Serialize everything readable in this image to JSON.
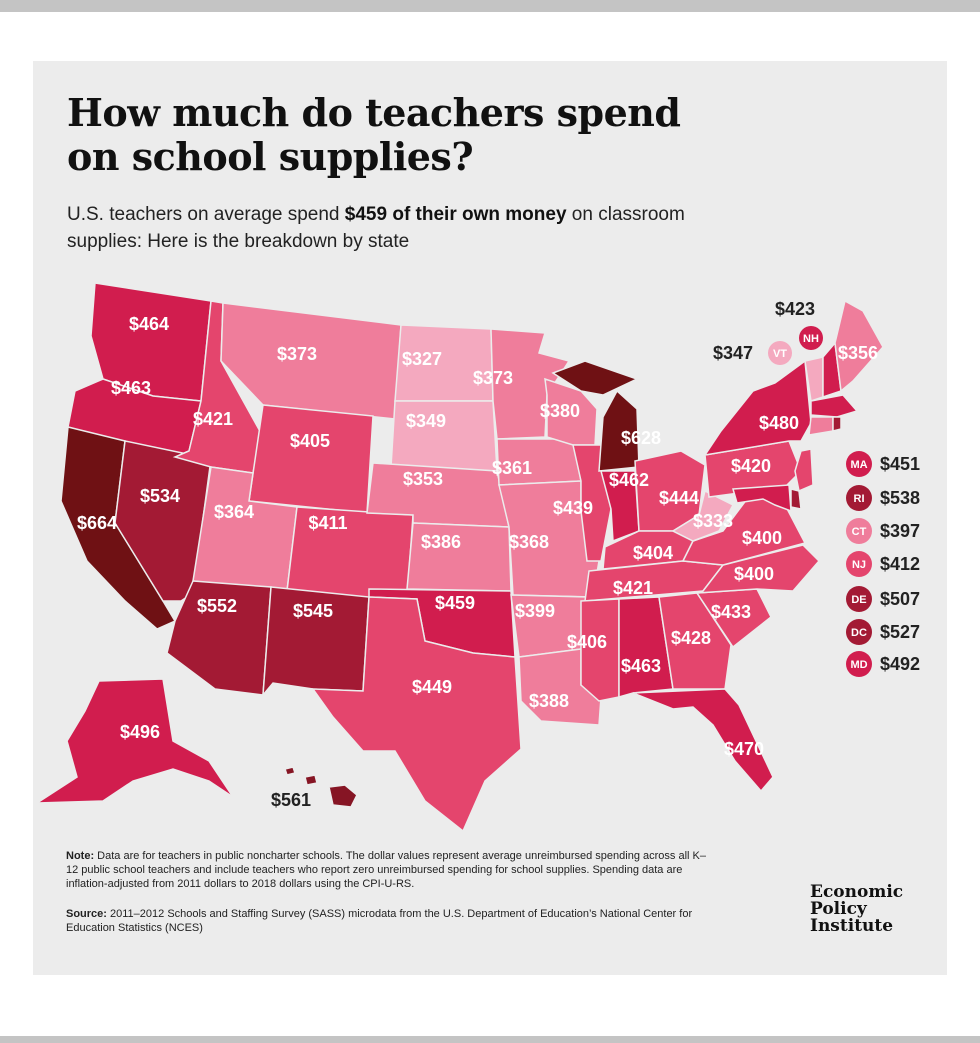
{
  "title": "How much do teachers spend on school supplies?",
  "subtitle": {
    "part1": "U.S. teachers on average spend ",
    "bold": "$459 of their own money",
    "part2": " on classroom supplies: Here is the breakdown by state"
  },
  "colors": {
    "background": "#ececec",
    "scale": [
      "#f4a9bf",
      "#ef7d9b",
      "#e4456d",
      "#d11d4e",
      "#a31a34",
      "#861524",
      "#6f1114"
    ]
  },
  "states": [
    {
      "code": "WA",
      "value": "$464"
    },
    {
      "code": "OR",
      "value": "$463"
    },
    {
      "code": "CA",
      "value": "$664"
    },
    {
      "code": "NV",
      "value": "$534"
    },
    {
      "code": "ID",
      "value": "$421"
    },
    {
      "code": "MT",
      "value": "$373"
    },
    {
      "code": "WY",
      "value": "$405"
    },
    {
      "code": "UT",
      "value": "$364"
    },
    {
      "code": "AZ",
      "value": "$552"
    },
    {
      "code": "CO",
      "value": "$411"
    },
    {
      "code": "NM",
      "value": "$545"
    },
    {
      "code": "ND",
      "value": "$327"
    },
    {
      "code": "SD",
      "value": "$349"
    },
    {
      "code": "NE",
      "value": "$353"
    },
    {
      "code": "KS",
      "value": "$386"
    },
    {
      "code": "OK",
      "value": "$459"
    },
    {
      "code": "TX",
      "value": "$449"
    },
    {
      "code": "MN",
      "value": "$373"
    },
    {
      "code": "IA",
      "value": "$361"
    },
    {
      "code": "MO",
      "value": "$368"
    },
    {
      "code": "AR",
      "value": "$399"
    },
    {
      "code": "LA",
      "value": "$388"
    },
    {
      "code": "WI",
      "value": "$380"
    },
    {
      "code": "IL",
      "value": "$439"
    },
    {
      "code": "MI",
      "value": "$628"
    },
    {
      "code": "IN",
      "value": "$462"
    },
    {
      "code": "OH",
      "value": "$444"
    },
    {
      "code": "KY",
      "value": "$404"
    },
    {
      "code": "TN",
      "value": "$421"
    },
    {
      "code": "MS",
      "value": "$406"
    },
    {
      "code": "AL",
      "value": "$463"
    },
    {
      "code": "GA",
      "value": "$428"
    },
    {
      "code": "FL",
      "value": "$470"
    },
    {
      "code": "SC",
      "value": "$433"
    },
    {
      "code": "NC",
      "value": "$400"
    },
    {
      "code": "VA",
      "value": "$400"
    },
    {
      "code": "WV",
      "value": "$333"
    },
    {
      "code": "PA",
      "value": "$420"
    },
    {
      "code": "NY",
      "value": "$480"
    },
    {
      "code": "VT",
      "value": "$347"
    },
    {
      "code": "NH",
      "value": "$423"
    },
    {
      "code": "ME",
      "value": "$356"
    },
    {
      "code": "AK",
      "value": "$496"
    },
    {
      "code": "HI",
      "value": "$561"
    }
  ],
  "legend": [
    {
      "code": "MA",
      "value": "$451"
    },
    {
      "code": "RI",
      "value": "$538"
    },
    {
      "code": "CT",
      "value": "$397"
    },
    {
      "code": "NJ",
      "value": "$412"
    },
    {
      "code": "DE",
      "value": "$507"
    },
    {
      "code": "DC",
      "value": "$527"
    },
    {
      "code": "MD",
      "value": "$492"
    }
  ],
  "note": {
    "label": "Note:",
    "text": " Data are for teachers in public noncharter schools. The dollar values represent average unreimbursed spending across all K–12 public school teachers and include teachers who report zero unreimbursed spending for school supplies. Spending data are inflation-adjusted from 2011 dollars to 2018 dollars using the CPI-U-RS."
  },
  "source": {
    "label": "Source:",
    "text": " 2011–2012 Schools and Staffing Survey (SASS) microdata from the U.S. Department of Education’s National Center for Education Statistics (NCES)"
  },
  "logo": {
    "line1": "Economic",
    "line2": "Policy",
    "line3": "Institute"
  }
}
